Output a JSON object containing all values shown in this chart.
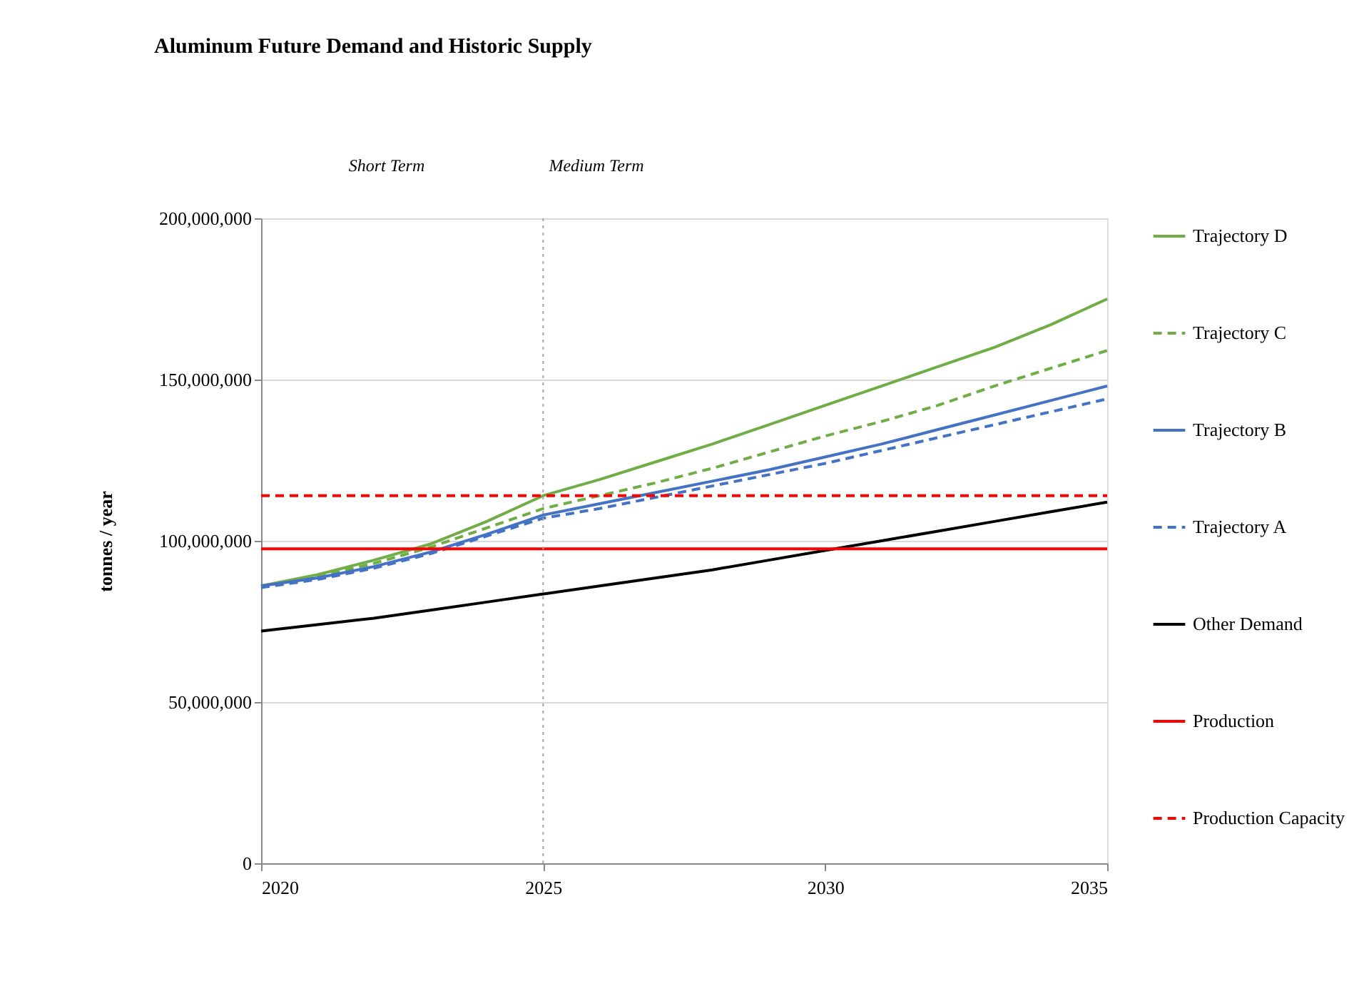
{
  "chart_data": {
    "type": "line",
    "title": "Aluminum Future Demand and Historic Supply",
    "ylabel": "tonnes / year",
    "x": [
      2020,
      2021,
      2022,
      2023,
      2024,
      2025,
      2026,
      2027,
      2028,
      2029,
      2030,
      2031,
      2032,
      2033,
      2034,
      2035
    ],
    "series": [
      {
        "name": "Trajectory D",
        "color": "#70ad47",
        "line_style": "solid",
        "values": [
          86000000,
          89500000,
          94000000,
          99000000,
          106000000,
          114000000,
          119000000,
          124500000,
          130000000,
          136000000,
          142000000,
          148000000,
          154000000,
          160000000,
          167000000,
          175000000
        ]
      },
      {
        "name": "Trajectory C",
        "color": "#70ad47",
        "line_style": "dashed",
        "values": [
          86000000,
          89000000,
          93000000,
          98000000,
          104000000,
          110000000,
          114000000,
          118000000,
          122500000,
          127500000,
          132500000,
          137000000,
          142000000,
          148000000,
          153500000,
          159000000
        ]
      },
      {
        "name": "Trajectory B",
        "color": "#4472c4",
        "line_style": "solid",
        "values": [
          86000000,
          88500000,
          92000000,
          96500000,
          102000000,
          108000000,
          111500000,
          115000000,
          118500000,
          122000000,
          126000000,
          130000000,
          134500000,
          139000000,
          143500000,
          148000000
        ]
      },
      {
        "name": "Trajectory A",
        "color": "#4472c4",
        "line_style": "dashed",
        "values": [
          85500000,
          88000000,
          91500000,
          96000000,
          101500000,
          107000000,
          110000000,
          113500000,
          117000000,
          120500000,
          124000000,
          128000000,
          132000000,
          136000000,
          140000000,
          144000000
        ]
      },
      {
        "name": "Other Demand",
        "color": "#000000",
        "line_style": "solid",
        "values": [
          72000000,
          74000000,
          76000000,
          78500000,
          81000000,
          83500000,
          86000000,
          88500000,
          91000000,
          94000000,
          97000000,
          100000000,
          103000000,
          106000000,
          109000000,
          112000000
        ]
      },
      {
        "name": "Production",
        "color": "#ff0000",
        "line_style": "solid",
        "values": [
          97500000,
          97500000,
          97500000,
          97500000,
          97500000,
          97500000,
          97500000,
          97500000,
          97500000,
          97500000,
          97500000,
          97500000,
          97500000,
          97500000,
          97500000,
          97500000
        ]
      },
      {
        "name": "Production Capacity",
        "color": "#ff0000",
        "line_style": "dashed",
        "values": [
          114000000,
          114000000,
          114000000,
          114000000,
          114000000,
          114000000,
          114000000,
          114000000,
          114000000,
          114000000,
          114000000,
          114000000,
          114000000,
          114000000,
          114000000,
          114000000
        ]
      }
    ],
    "xlim": [
      2020,
      2035
    ],
    "xticks": [
      2020,
      2025,
      2030,
      2035
    ],
    "ylim": [
      0,
      200000000
    ],
    "yticks": [
      0,
      {
        "value": 50000000,
        "label": "50,000,000"
      },
      {
        "value": 100000000,
        "label": "100,000,000"
      },
      {
        "value": 150000000,
        "label": "150,000,000"
      },
      {
        "value": 200000000,
        "label": "200,000,000"
      }
    ],
    "ref_lines": [
      {
        "axis": "x",
        "value": 2025,
        "color": "#a6a6a6",
        "line_style": "dotted"
      }
    ],
    "annotations": [
      "Short Term",
      "Medium Term"
    ],
    "grid": "y",
    "legend": "right"
  }
}
